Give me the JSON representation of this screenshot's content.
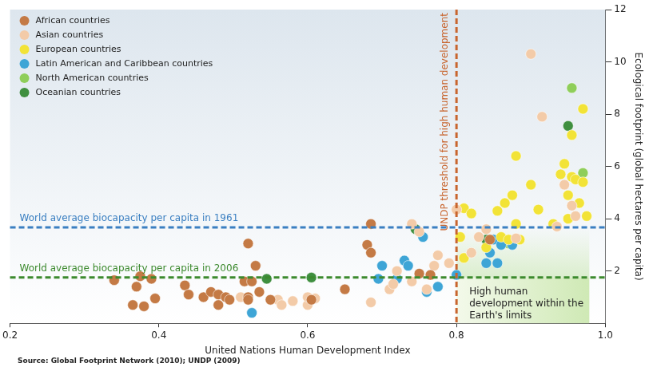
{
  "chart_data": {
    "type": "scatter",
    "xlabel": "United Nations Human Development Index",
    "ylabel": "Ecological footprint (global hectares per capita)",
    "source": "Source: Global Footprint Network (2010); UNDP (2009)",
    "xlim": [
      0.2,
      1.0
    ],
    "xticks": [
      0.2,
      0.4,
      0.6,
      0.8,
      {
        "value": 1,
        "label": "1.0"
      }
    ],
    "ylim": [
      0,
      12
    ],
    "yticks": [
      2,
      4,
      6,
      8,
      10,
      12
    ],
    "grid": false,
    "legend": "upper left",
    "hlines": [
      {
        "value": 3.67,
        "label": "World average biocapacity per capita in 1961",
        "color": "#3a7fc1",
        "line_style": "dashed"
      },
      {
        "value": 1.75,
        "label": "World average biocapacity per capita in 2006",
        "color": "#3c8a2e",
        "line_style": "dashed"
      }
    ],
    "vlines": [
      {
        "value": 0.8,
        "label": "UNDP threshold for high human development",
        "color": "#c8652e",
        "line_style": "dashed"
      }
    ],
    "annotations": [
      {
        "text": "High human development within the Earth's limits",
        "x": 0.8,
        "y": 1.75
      }
    ],
    "series": [
      {
        "name": "African countries",
        "color": "#c47a45",
        "marker": "circle",
        "x": [
          0.34,
          0.365,
          0.37,
          0.375,
          0.38,
          0.39,
          0.395,
          0.435,
          0.44,
          0.46,
          0.47,
          0.48,
          0.48,
          0.49,
          0.495,
          0.515,
          0.52,
          0.52,
          0.52,
          0.525,
          0.53,
          0.535,
          0.55,
          0.605,
          0.65,
          0.68,
          0.685,
          0.685,
          0.75,
          0.765,
          0.845
        ],
        "values": [
          1.65,
          0.7,
          1.4,
          1.8,
          0.65,
          1.7,
          0.95,
          1.45,
          1.1,
          1.0,
          1.2,
          1.1,
          0.7,
          1.0,
          0.9,
          1.6,
          3.05,
          1.0,
          0.9,
          1.6,
          2.2,
          1.2,
          0.9,
          0.9,
          1.3,
          3.0,
          2.7,
          3.8,
          1.9,
          1.85,
          3.2
        ]
      },
      {
        "name": "Asian countries",
        "color": "#f3cba8",
        "marker": "circle",
        "x": [
          0.51,
          0.56,
          0.565,
          0.58,
          0.6,
          0.6,
          0.61,
          0.685,
          0.71,
          0.715,
          0.72,
          0.74,
          0.74,
          0.75,
          0.76,
          0.77,
          0.775,
          0.79,
          0.8,
          0.82,
          0.83,
          0.84,
          0.88,
          0.9,
          0.915,
          0.935,
          0.945,
          0.955,
          0.96
        ],
        "values": [
          1.0,
          0.9,
          0.7,
          0.85,
          0.7,
          1.0,
          0.95,
          0.8,
          1.3,
          1.5,
          2.0,
          1.6,
          3.8,
          3.5,
          1.3,
          2.2,
          2.6,
          2.3,
          4.35,
          2.7,
          3.3,
          3.6,
          3.25,
          10.3,
          7.9,
          3.7,
          5.3,
          4.5,
          4.1
        ]
      },
      {
        "name": "European countries",
        "color": "#f2e337",
        "marker": "circle",
        "x": [
          0.805,
          0.81,
          0.81,
          0.82,
          0.84,
          0.855,
          0.86,
          0.865,
          0.87,
          0.875,
          0.88,
          0.88,
          0.885,
          0.9,
          0.91,
          0.93,
          0.94,
          0.945,
          0.95,
          0.95,
          0.955,
          0.955,
          0.96,
          0.965,
          0.97,
          0.97,
          0.975
        ],
        "values": [
          3.3,
          4.4,
          2.5,
          4.2,
          2.9,
          4.3,
          3.3,
          4.6,
          3.2,
          4.9,
          3.8,
          6.4,
          3.2,
          5.3,
          4.35,
          3.8,
          5.7,
          6.1,
          4.0,
          4.9,
          5.6,
          7.2,
          5.5,
          4.6,
          8.2,
          5.4,
          4.1
        ]
      },
      {
        "name": "Latin American and Caribbean countries",
        "color": "#3ea5d6",
        "marker": "circle",
        "x": [
          0.525,
          0.695,
          0.7,
          0.72,
          0.73,
          0.735,
          0.755,
          0.76,
          0.775,
          0.8,
          0.84,
          0.845,
          0.85,
          0.855,
          0.86,
          0.875
        ],
        "values": [
          0.4,
          1.7,
          2.2,
          1.7,
          2.4,
          2.2,
          3.3,
          1.2,
          1.4,
          1.85,
          2.3,
          2.7,
          3.2,
          2.3,
          3.0,
          3.0
        ]
      },
      {
        "name": "North American countries",
        "color": "#8fce5a",
        "marker": "circle",
        "x": [
          0.955,
          0.97,
          0.87
        ],
        "values": [
          9.0,
          5.75,
          3.05
        ]
      },
      {
        "name": "Oceanian countries",
        "color": "#3f8f3f",
        "marker": "circle",
        "x": [
          0.95,
          0.545,
          0.605,
          0.745,
          0.84,
          0.86
        ],
        "values": [
          7.55,
          1.7,
          1.75,
          3.6,
          3.2,
          3.1
        ]
      }
    ]
  }
}
